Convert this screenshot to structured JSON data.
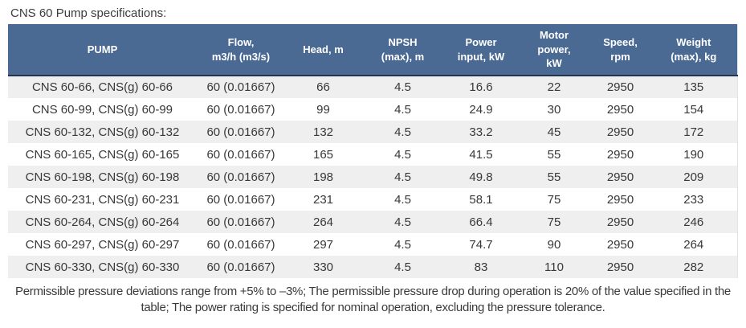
{
  "title": "CNS 60 Pump specifications:",
  "table": {
    "column_keys": [
      "pump",
      "flow",
      "head",
      "npsh",
      "power_input",
      "motor_power",
      "speed",
      "weight"
    ],
    "columns": [
      {
        "label": "PUMP"
      },
      {
        "label": "Flow,\nm3/h (m3/s)"
      },
      {
        "label": "Head, m"
      },
      {
        "label": "NPSH\n(max), m"
      },
      {
        "label": "Power\ninput, kW"
      },
      {
        "label": "Motor\npower,\nkW"
      },
      {
        "label": "Speed,\nrpm"
      },
      {
        "label": "Weight\n(max), kg"
      }
    ],
    "rows": [
      [
        "CNS 60-66, CNS(g) 60-66",
        "60 (0.01667)",
        "66",
        "4.5",
        "16.6",
        "22",
        "2950",
        "135"
      ],
      [
        "CNS 60-99, CNS(g) 60-99",
        "60 (0.01667)",
        "99",
        "4.5",
        "24.9",
        "30",
        "2950",
        "154"
      ],
      [
        "CNS 60-132, CNS(g) 60-132",
        "60 (0.01667)",
        "132",
        "4.5",
        "33.2",
        "45",
        "2950",
        "172"
      ],
      [
        "CNS 60-165, CNS(g) 60-165",
        "60 (0.01667)",
        "165",
        "4.5",
        "41.5",
        "55",
        "2950",
        "190"
      ],
      [
        "CNS 60-198, CNS(g) 60-198",
        "60 (0.01667)",
        "198",
        "4.5",
        "49.8",
        "55",
        "2950",
        "209"
      ],
      [
        "CNS 60-231, CNS(g) 60-231",
        "60 (0.01667)",
        "231",
        "4.5",
        "58.1",
        "75",
        "2950",
        "233"
      ],
      [
        "CNS 60-264, CNS(g) 60-264",
        "60 (0.01667)",
        "264",
        "4.5",
        "66.4",
        "75",
        "2950",
        "246"
      ],
      [
        "CNS 60-297, CNS(g) 60-297",
        "60 (0.01667)",
        "297",
        "4.5",
        "74.7",
        "90",
        "2950",
        "264"
      ],
      [
        "CNS 60-330, CNS(g) 60-330",
        "60 (0.01667)",
        "330",
        "4.5",
        "83",
        "110",
        "2950",
        "282"
      ]
    ]
  },
  "footer": "Permissible pressure deviations range from +5% to –3%; The permissible pressure drop during operation is 20% of the value specified in the table; The power rating is specified for nominal operation, excluding the pressure tolerance.",
  "colors": {
    "header_bg": "#4a6a94",
    "header_border": "#24344d",
    "header_text": "#ffffff",
    "row_stripe": "#efefef",
    "body_text": "#383838"
  }
}
